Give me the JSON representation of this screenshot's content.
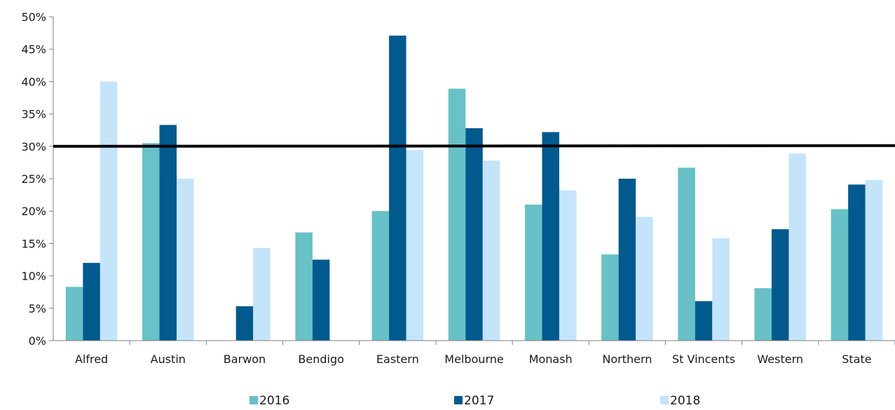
{
  "chart_data": {
    "type": "bar",
    "title": "",
    "xlabel": "",
    "ylabel": "",
    "categories": [
      "Alfred",
      "Austin",
      "Barwon",
      "Bendigo",
      "Eastern",
      "Melbourne",
      "Monash",
      "Northern",
      "St Vincents",
      "Western",
      "State"
    ],
    "series": [
      {
        "name": "2016",
        "color": "#67c1c6",
        "values": [
          8.3,
          30.5,
          0,
          16.7,
          20.0,
          38.9,
          21.0,
          13.3,
          26.7,
          8.1,
          20.3
        ]
      },
      {
        "name": "2017",
        "color": "#005a8e",
        "values": [
          12.0,
          33.3,
          5.3,
          12.5,
          47.1,
          32.8,
          32.2,
          25.0,
          6.1,
          17.2,
          24.1
        ]
      },
      {
        "name": "2018",
        "color": "#c4e4fa",
        "values": [
          40.0,
          25.0,
          14.3,
          0,
          29.4,
          27.8,
          23.2,
          19.1,
          15.8,
          28.9,
          24.8
        ]
      }
    ],
    "ylim": [
      0,
      50
    ],
    "yticks": [
      0,
      5,
      10,
      15,
      20,
      25,
      30,
      35,
      40,
      45,
      50
    ],
    "ytick_labels": [
      "0%",
      "5%",
      "10%",
      "15%",
      "20%",
      "25%",
      "30%",
      "35%",
      "40%",
      "45%",
      "50%"
    ],
    "target_line": 30,
    "grid": false,
    "legend_position": "bottom"
  }
}
